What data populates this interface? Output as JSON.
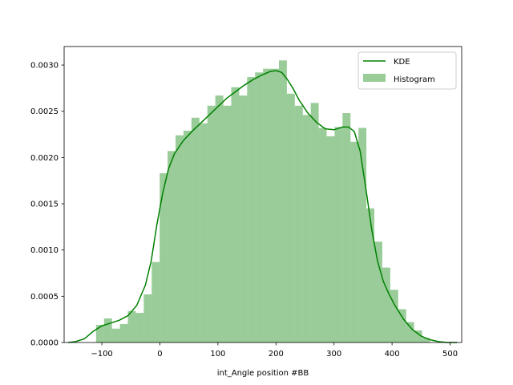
{
  "chart_data": {
    "type": "bar",
    "xlabel": "int_Angle position #BB",
    "ylabel": "",
    "xlim": [
      -165,
      520
    ],
    "ylim": [
      0,
      0.0032
    ],
    "xticks": [
      -100,
      0,
      100,
      200,
      300,
      400,
      500
    ],
    "xtick_labels": [
      "−100",
      "0",
      "100",
      "200",
      "300",
      "400",
      "500"
    ],
    "yticks": [
      0,
      0.0005,
      0.001,
      0.0015,
      0.002,
      0.0025,
      0.003
    ],
    "ytick_labels": [
      "0.0000",
      "0.0005",
      "0.0010",
      "0.0015",
      "0.0020",
      "0.0025",
      "0.0030"
    ],
    "grid": false,
    "legend_position": "top-right",
    "series": [
      {
        "name": "Histogram",
        "kind": "histogram",
        "color": "#008000",
        "alpha": 0.4,
        "bin_edges": [
          -110,
          -96.3,
          -82.6,
          -68.9,
          -55.2,
          -41.5,
          -27.8,
          -14.1,
          -0.4,
          13.3,
          27.0,
          40.7,
          54.4,
          68.1,
          81.8,
          95.5,
          109.2,
          122.9,
          136.6,
          150.3,
          164.0,
          177.7,
          191.4,
          205.1,
          218.8,
          232.5,
          246.2,
          259.9,
          273.6,
          287.3,
          301.0,
          314.7,
          328.4,
          342.1,
          355.8,
          369.5,
          383.2,
          396.9,
          410.6,
          424.3,
          438.0,
          451.7,
          465.4
        ],
        "values": [
          0.00019,
          0.00026,
          0.00015,
          0.0002,
          0.00034,
          0.00032,
          0.00052,
          0.00087,
          0.00183,
          0.00207,
          0.00224,
          0.00229,
          0.00243,
          0.00237,
          0.00256,
          0.00267,
          0.00256,
          0.00276,
          0.00267,
          0.00287,
          0.00292,
          0.00296,
          0.00296,
          0.00305,
          0.00269,
          0.00256,
          0.00246,
          0.00259,
          0.00232,
          0.00223,
          0.00233,
          0.00248,
          0.00217,
          0.00232,
          0.00145,
          0.00109,
          0.00081,
          0.00057,
          0.00036,
          0.00022,
          0.00013,
          5e-05
        ]
      },
      {
        "name": "KDE",
        "kind": "line",
        "color": "#008000",
        "x": [
          -158,
          -145,
          -130,
          -115,
          -100,
          -85,
          -70,
          -55,
          -40,
          -25,
          -15,
          -5,
          5,
          15,
          25,
          40,
          55,
          70,
          85,
          100,
          115,
          130,
          145,
          160,
          175,
          190,
          200,
          210,
          220,
          230,
          240,
          255,
          270,
          285,
          300,
          315,
          325,
          335,
          345,
          355,
          365,
          375,
          385,
          395,
          405,
          420,
          435,
          450,
          465,
          480,
          495,
          512
        ],
        "y": [
          0.0,
          1e-05,
          4e-05,
          0.00012,
          0.00018,
          0.00021,
          0.00024,
          0.00029,
          0.0004,
          0.00062,
          0.00088,
          0.00128,
          0.00162,
          0.00188,
          0.00204,
          0.00218,
          0.00228,
          0.00237,
          0.00246,
          0.00255,
          0.00264,
          0.00271,
          0.00278,
          0.00284,
          0.00289,
          0.00293,
          0.00294,
          0.00292,
          0.00284,
          0.00274,
          0.00262,
          0.00248,
          0.00238,
          0.00231,
          0.0023,
          0.00233,
          0.00233,
          0.00228,
          0.00207,
          0.00166,
          0.00122,
          0.00088,
          0.00066,
          0.00052,
          0.0004,
          0.00025,
          0.00014,
          7e-05,
          3e-05,
          1e-05,
          0.0,
          0.0
        ]
      }
    ]
  }
}
